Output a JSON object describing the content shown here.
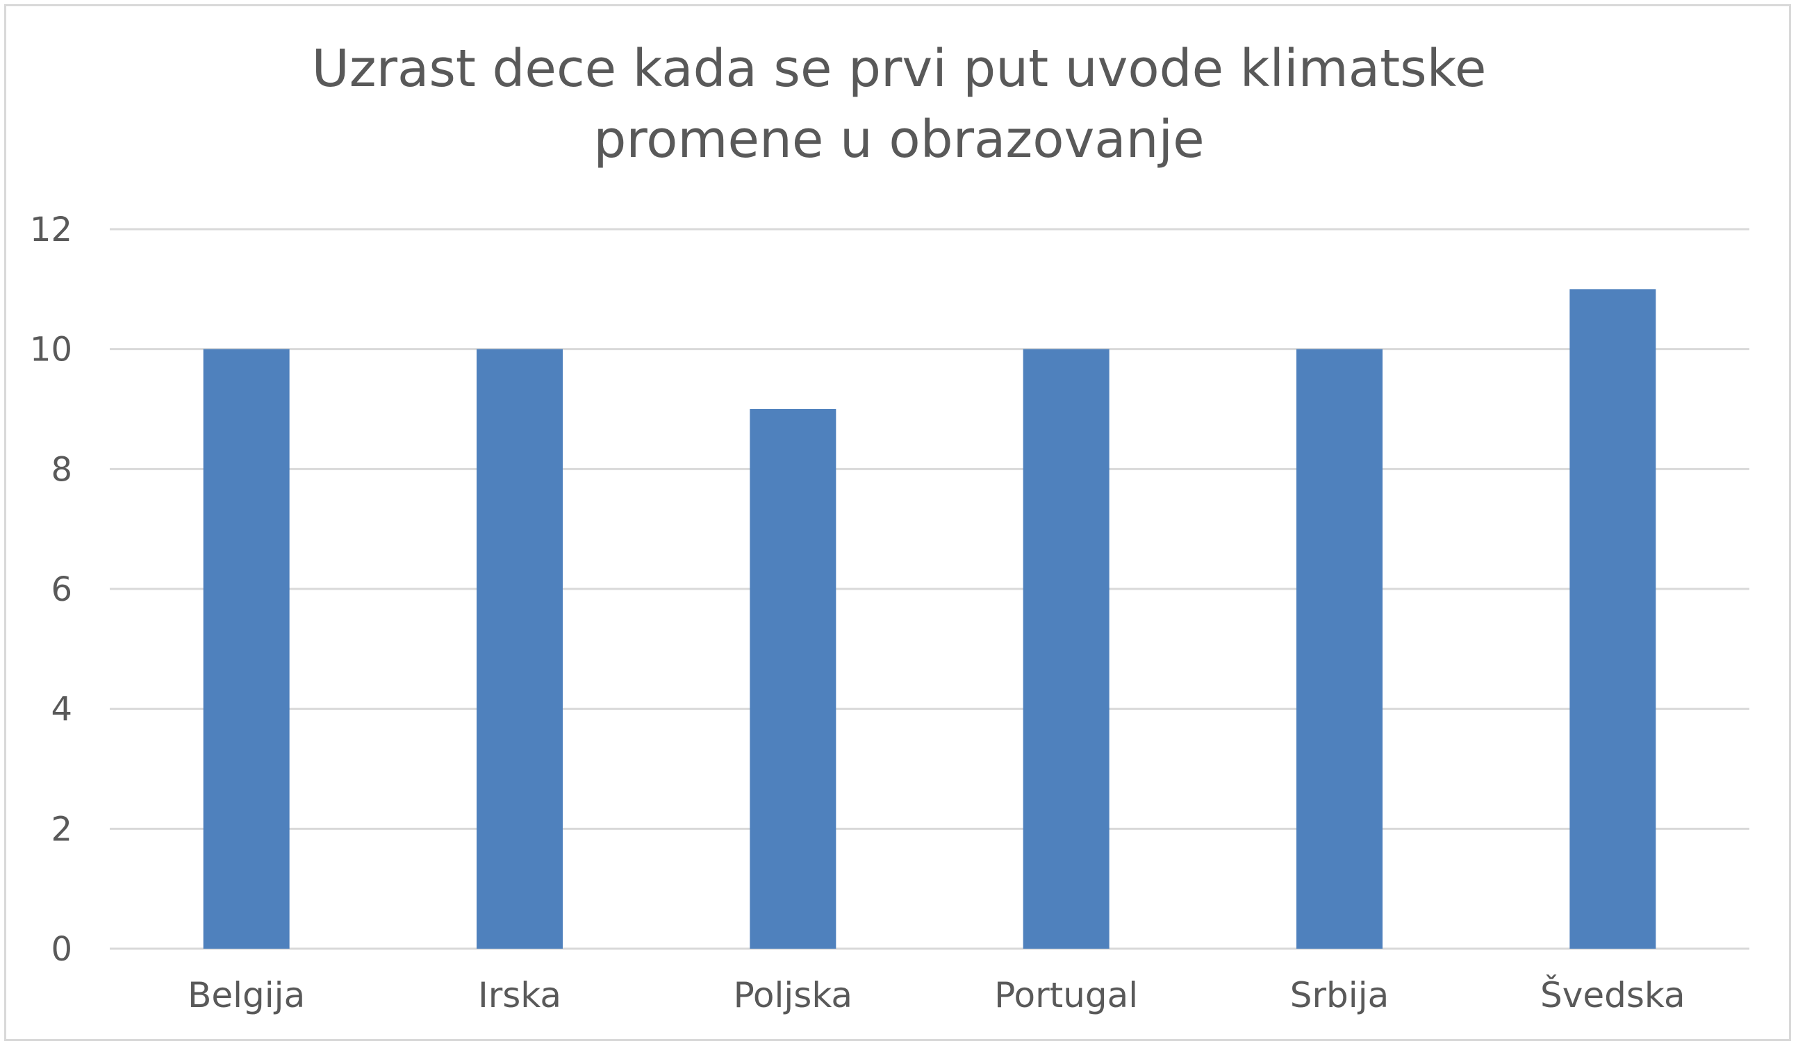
{
  "chart_data": {
    "type": "bar",
    "title_lines": [
      "Uzrast dece kada se prvi put uvode klimatske",
      "promene u obrazovanje"
    ],
    "categories": [
      "Belgija",
      "Irska",
      "Poljska",
      "Portugal",
      "Srbija",
      "Švedska"
    ],
    "values": [
      10,
      10,
      9,
      10,
      10,
      11
    ],
    "ylim": [
      0,
      12
    ],
    "yticks": [
      "0",
      "2",
      "4",
      "6",
      "8",
      "10",
      "12"
    ],
    "grid": true,
    "legend": "none",
    "bar_color": "#4f81bd",
    "grid_color": "#d9d9d9",
    "text_color": "#595959"
  }
}
